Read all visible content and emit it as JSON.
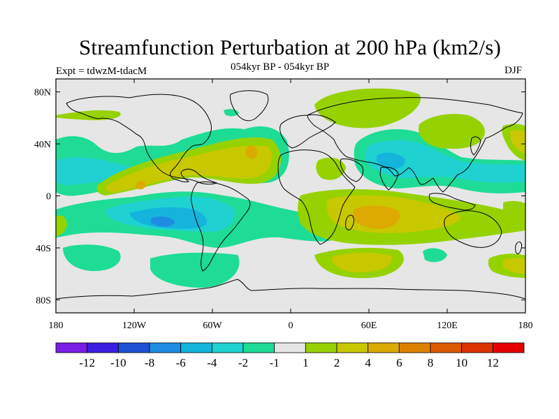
{
  "title": "Streamfunction Perturbation at 200 hPa (km2/s)",
  "subtitle": "054kyr BP - 054kyr BP",
  "experiment_label": "Expt = tdwzM-tdacM",
  "season": "DJF",
  "axes": {
    "lat_ticks": [
      {
        "value": 80,
        "label": "80N"
      },
      {
        "value": 40,
        "label": "40N"
      },
      {
        "value": 0,
        "label": "0"
      },
      {
        "value": -40,
        "label": "40S"
      },
      {
        "value": -80,
        "label": "80S"
      }
    ],
    "lon_ticks": [
      {
        "value": -180,
        "label": "180"
      },
      {
        "value": -120,
        "label": "120W"
      },
      {
        "value": -60,
        "label": "60W"
      },
      {
        "value": 0,
        "label": "0"
      },
      {
        "value": 60,
        "label": "60E"
      },
      {
        "value": 120,
        "label": "120E"
      },
      {
        "value": 180,
        "label": "180"
      }
    ],
    "lon_range": [
      -180,
      180
    ],
    "lat_range": [
      -90,
      90
    ]
  },
  "colorbar": {
    "colors": [
      "#7a1ee6",
      "#3b1ee0",
      "#1e50d2",
      "#1e8ce0",
      "#14b4dc",
      "#1ed2d2",
      "#1edc96",
      "#e6e6e6",
      "#96d200",
      "#c8c800",
      "#dcaa00",
      "#dc8200",
      "#dc5a00",
      "#dc3200",
      "#e60000"
    ],
    "labels": [
      "-12",
      "-10",
      "-8",
      "-6",
      "-4",
      "-2",
      "-1",
      "1",
      "2",
      "4",
      "6",
      "8",
      "10",
      "12"
    ]
  },
  "colors": {
    "background": "#e6e6e6",
    "c_neg1": "#1edc96",
    "c_neg2": "#1ed2d2",
    "c_neg4": "#14b4dc",
    "c_neg6": "#1e8ce0",
    "c_pos1": "#96d200",
    "c_pos2": "#c8c800",
    "c_pos4": "#dcaa00",
    "c_pos6": "#dc8200"
  },
  "chart_data": {
    "type": "heatmap",
    "title": "Streamfunction Perturbation at 200 hPa (km2/s)",
    "units": "km2/s",
    "level": "200 hPa",
    "season": "DJF",
    "contour_levels": [
      -12,
      -10,
      -8,
      -6,
      -4,
      -2,
      -1,
      1,
      2,
      4,
      6,
      8,
      10,
      12
    ],
    "features": [
      {
        "region": "Equatorial/subtropical east Pacific (~10N, 160W-20W)",
        "value_range": [
          1,
          4
        ],
        "peak_lon": -30,
        "peak_lat": 30
      },
      {
        "region": "Subtropical SE Pacific / South America (~25S, 100W)",
        "value_range": [
          -6,
          -2
        ],
        "peak_lon": -100,
        "peak_lat": -20
      },
      {
        "region": "Indian Ocean (~20S, 70E)",
        "value_range": [
          2,
          6
        ],
        "peak_lon": 70,
        "peak_lat": -20
      },
      {
        "region": "Subtropical NW Pacific (~25N, 130E)",
        "value_range": [
          -4,
          -1
        ],
        "peak_lon": 135,
        "peak_lat": 30
      },
      {
        "region": "Southern Ocean (~50S, 60W)",
        "value_range": [
          -2,
          -1
        ]
      },
      {
        "region": "South Indian Ocean (~45S, 40E)",
        "value_range": [
          1,
          4
        ]
      },
      {
        "region": "Arctic / N Atlantic (~75N, 40E)",
        "value_range": [
          1,
          2
        ]
      }
    ]
  }
}
